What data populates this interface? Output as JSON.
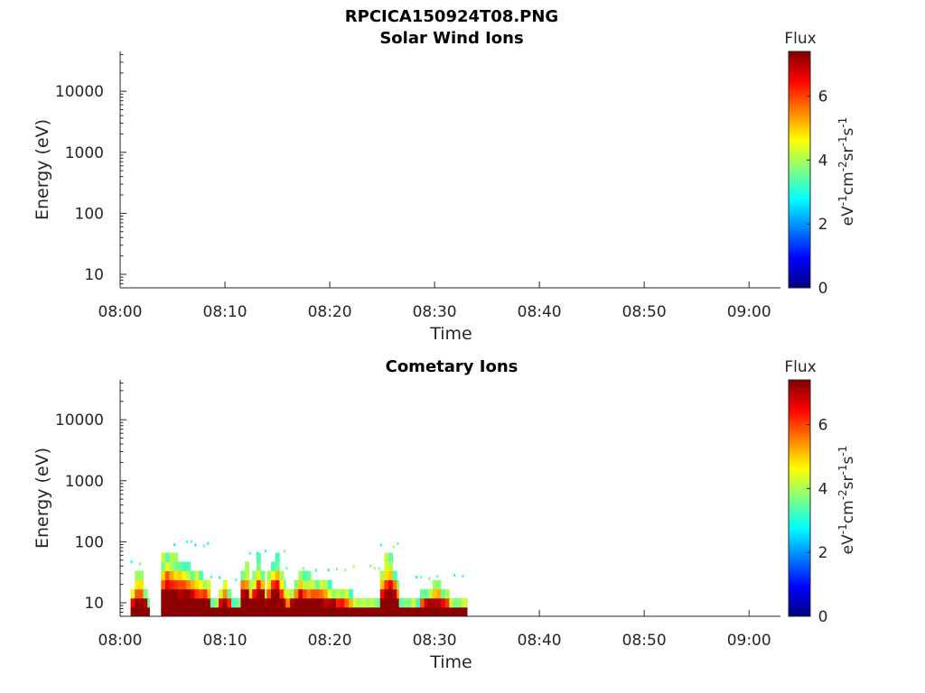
{
  "figure_title": "RPCICA150924T08.PNG",
  "chart_data": [
    {
      "type": "heatmap",
      "title": "Solar Wind Ions",
      "xlabel": "Time",
      "ylabel": "Energy (eV)",
      "yscale": "log",
      "ylim": [
        6,
        45000
      ],
      "x_ticks": [
        "08:00",
        "08:10",
        "08:20",
        "08:30",
        "08:40",
        "08:50",
        "09:00"
      ],
      "y_ticks": [
        "10",
        "100",
        "1000",
        "10000"
      ],
      "colorbar": {
        "label": "Flux",
        "unit": "eV-1cm-2sr-1s-1",
        "range": [
          0,
          7.4
        ],
        "ticks": [
          "0",
          "2",
          "4",
          "6"
        ],
        "colormap": "jet"
      },
      "events": []
    },
    {
      "type": "heatmap",
      "title": "Cometary Ions",
      "xlabel": "Time",
      "ylabel": "Energy (eV)",
      "yscale": "log",
      "ylim": [
        6,
        45000
      ],
      "x_ticks": [
        "08:00",
        "08:10",
        "08:20",
        "08:30",
        "08:40",
        "08:50",
        "09:00"
      ],
      "y_ticks": [
        "10",
        "100",
        "1000",
        "10000"
      ],
      "colorbar": {
        "label": "Flux",
        "unit": "eV-1cm-2sr-1s-1",
        "range": [
          0,
          7.4
        ],
        "ticks": [
          "0",
          "2",
          "4",
          "6"
        ],
        "colormap": "jet"
      },
      "events": [
        {
          "start_min": 1.0,
          "end_min": 2.8,
          "peak_min": 1.8,
          "peak_energy_ev": 35
        },
        {
          "start_min": 3.9,
          "end_min": 8.6,
          "peak_min": 4.2,
          "peak_energy_ev": 75
        },
        {
          "start_min": 8.6,
          "end_min": 11.5,
          "peak_min": 10.0,
          "peak_energy_ev": 22
        },
        {
          "start_min": 11.5,
          "end_min": 12.6,
          "peak_min": 11.9,
          "peak_energy_ev": 60
        },
        {
          "start_min": 12.6,
          "end_min": 14.0,
          "peak_min": 13.3,
          "peak_energy_ev": 60
        },
        {
          "start_min": 14.0,
          "end_min": 15.8,
          "peak_min": 14.8,
          "peak_energy_ev": 65
        },
        {
          "start_min": 15.8,
          "end_min": 24.8,
          "peak_min": 17.0,
          "peak_energy_ev": 30
        },
        {
          "start_min": 24.8,
          "end_min": 26.6,
          "peak_min": 25.6,
          "peak_energy_ev": 70
        },
        {
          "start_min": 26.6,
          "end_min": 33.1,
          "peak_min": 30.3,
          "peak_energy_ev": 22
        }
      ]
    }
  ]
}
